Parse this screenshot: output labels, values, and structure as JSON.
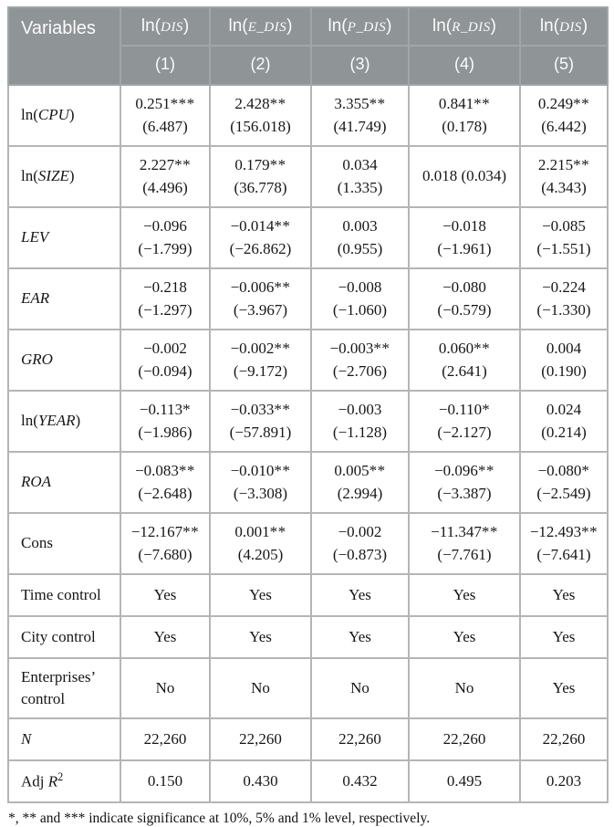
{
  "footnote": "*, ** and *** indicate significance at 10%, 5% and 1% level, respectively.",
  "table": {
    "header": {
      "variables_label": "Variables",
      "columns": [
        {
          "fn": "ln(",
          "var": "DIS",
          "close": ")",
          "num": "(1)"
        },
        {
          "fn": "ln(",
          "var": "E_DIS",
          "close": ")",
          "num": "(2)"
        },
        {
          "fn": "ln(",
          "var": "P_DIS",
          "close": ")",
          "num": "(3)"
        },
        {
          "fn": "ln(",
          "var": "R_DIS",
          "close": ")",
          "num": "(4)"
        },
        {
          "fn": "ln(",
          "var": "DIS",
          "close": ")",
          "num": "(5)"
        }
      ]
    },
    "rows": [
      {
        "label": [
          {
            "t": "ln("
          },
          {
            "t": "CPU",
            "i": 1
          },
          {
            "t": ")"
          }
        ],
        "cells": [
          {
            "v": "0.251",
            "stars": "***",
            "t": "(6.487)"
          },
          {
            "v": "2.428",
            "stars": "**",
            "t": "(156.018)"
          },
          {
            "v": "3.355",
            "stars": "**",
            "t": "(41.749)"
          },
          {
            "v": "0.841",
            "stars": "**",
            "t": "(0.178)"
          },
          {
            "v": "0.249",
            "stars": "**",
            "t": "(6.442)"
          }
        ]
      },
      {
        "label": [
          {
            "t": "ln("
          },
          {
            "t": "SIZE",
            "i": 1
          },
          {
            "t": ")"
          }
        ],
        "cells": [
          {
            "v": "2.227",
            "stars": "**",
            "t": "(4.496)"
          },
          {
            "v": "0.179",
            "stars": "**",
            "t": "(36.778)"
          },
          {
            "v": "0.034",
            "stars": "",
            "t": "(1.335)"
          },
          {
            "v": "0.018 (0.034)",
            "stars": ""
          },
          {
            "v": "2.215",
            "stars": "**",
            "t": "(4.343)"
          }
        ]
      },
      {
        "label": [
          {
            "t": "LEV",
            "i": 1
          }
        ],
        "cells": [
          {
            "v": "−0.096",
            "stars": "",
            "t": "(−1.799)"
          },
          {
            "v": "−0.014",
            "stars": "**",
            "t": "(−26.862)"
          },
          {
            "v": "0.003",
            "stars": "",
            "t": "(0.955)"
          },
          {
            "v": "−0.018",
            "stars": "",
            "t": "(−1.961)"
          },
          {
            "v": "−0.085",
            "stars": "",
            "t": "(−1.551)"
          }
        ]
      },
      {
        "label": [
          {
            "t": "EAR",
            "i": 1
          }
        ],
        "cells": [
          {
            "v": "−0.218",
            "stars": "",
            "t": "(−1.297)"
          },
          {
            "v": "−0.006",
            "stars": "**",
            "t": "(−3.967)"
          },
          {
            "v": "−0.008",
            "stars": "",
            "t": "(−1.060)"
          },
          {
            "v": "−0.080",
            "stars": "",
            "t": "(−0.579)"
          },
          {
            "v": "−0.224",
            "stars": "",
            "t": "(−1.330)"
          }
        ]
      },
      {
        "label": [
          {
            "t": "GRO",
            "i": 1
          }
        ],
        "cells": [
          {
            "v": "−0.002",
            "stars": "",
            "t": "(−0.094)"
          },
          {
            "v": "−0.002",
            "stars": "**",
            "t": "(−9.172)"
          },
          {
            "v": "−0.003",
            "stars": "**",
            "t": "(−2.706)"
          },
          {
            "v": "0.060",
            "stars": "**",
            "t": "(2.641)"
          },
          {
            "v": "0.004",
            "stars": "",
            "t": "(0.190)"
          }
        ]
      },
      {
        "label": [
          {
            "t": "ln("
          },
          {
            "t": "YEAR",
            "i": 1
          },
          {
            "t": ")"
          }
        ],
        "cells": [
          {
            "v": "−0.113",
            "stars": "*",
            "t": "(−1.986)"
          },
          {
            "v": "−0.033",
            "stars": "**",
            "t": "(−57.891)"
          },
          {
            "v": "−0.003",
            "stars": "",
            "t": "(−1.128)"
          },
          {
            "v": "−0.110",
            "stars": "*",
            "t": "(−2.127)"
          },
          {
            "v": "0.024",
            "stars": "",
            "t": "(0.214)"
          }
        ]
      },
      {
        "label": [
          {
            "t": "ROA",
            "i": 1
          }
        ],
        "cells": [
          {
            "v": "−0.083",
            "stars": "**",
            "t": "(−2.648)"
          },
          {
            "v": "−0.010",
            "stars": "**",
            "t": "(−3.308)"
          },
          {
            "v": "0.005",
            "stars": "**",
            "t": "(2.994)"
          },
          {
            "v": "−0.096",
            "stars": "**",
            "t": "(−3.387)"
          },
          {
            "v": "−0.080",
            "stars": "*",
            "t": "(−2.549)"
          }
        ]
      },
      {
        "label": [
          {
            "t": "Cons"
          }
        ],
        "cells": [
          {
            "v": "−12.167",
            "stars": "**",
            "t": "(−7.680)"
          },
          {
            "v": "0.001",
            "stars": "**",
            "t": "(4.205)"
          },
          {
            "v": "−0.002",
            "stars": "",
            "t": "(−0.873)"
          },
          {
            "v": "−11.347",
            "stars": "**",
            "t": "(−7.761)"
          },
          {
            "v": "−12.493",
            "stars": "**",
            "t": "(−7.641)"
          }
        ]
      },
      {
        "label": [
          {
            "t": "Time control"
          }
        ],
        "cells": [
          {
            "v": "Yes"
          },
          {
            "v": "Yes"
          },
          {
            "v": "Yes"
          },
          {
            "v": "Yes"
          },
          {
            "v": "Yes"
          }
        ]
      },
      {
        "label": [
          {
            "t": "City control"
          }
        ],
        "cells": [
          {
            "v": "Yes"
          },
          {
            "v": "Yes"
          },
          {
            "v": "Yes"
          },
          {
            "v": "Yes"
          },
          {
            "v": "Yes"
          }
        ]
      },
      {
        "label": [
          {
            "t": "Enterprises’ control"
          }
        ],
        "cells": [
          {
            "v": "No"
          },
          {
            "v": "No"
          },
          {
            "v": "No"
          },
          {
            "v": "No"
          },
          {
            "v": "Yes"
          }
        ]
      },
      {
        "label": [
          {
            "t": "N",
            "i": 1
          }
        ],
        "cells": [
          {
            "v": "22,260"
          },
          {
            "v": "22,260"
          },
          {
            "v": "22,260"
          },
          {
            "v": "22,260"
          },
          {
            "v": "22,260"
          }
        ]
      },
      {
        "label": [
          {
            "t": "Adj "
          },
          {
            "t": "R",
            "i": 1
          },
          {
            "t": "2",
            "sup": 1
          }
        ],
        "cells": [
          {
            "v": "0.150"
          },
          {
            "v": "0.430"
          },
          {
            "v": "0.432"
          },
          {
            "v": "0.495"
          },
          {
            "v": "0.203"
          }
        ]
      }
    ]
  }
}
